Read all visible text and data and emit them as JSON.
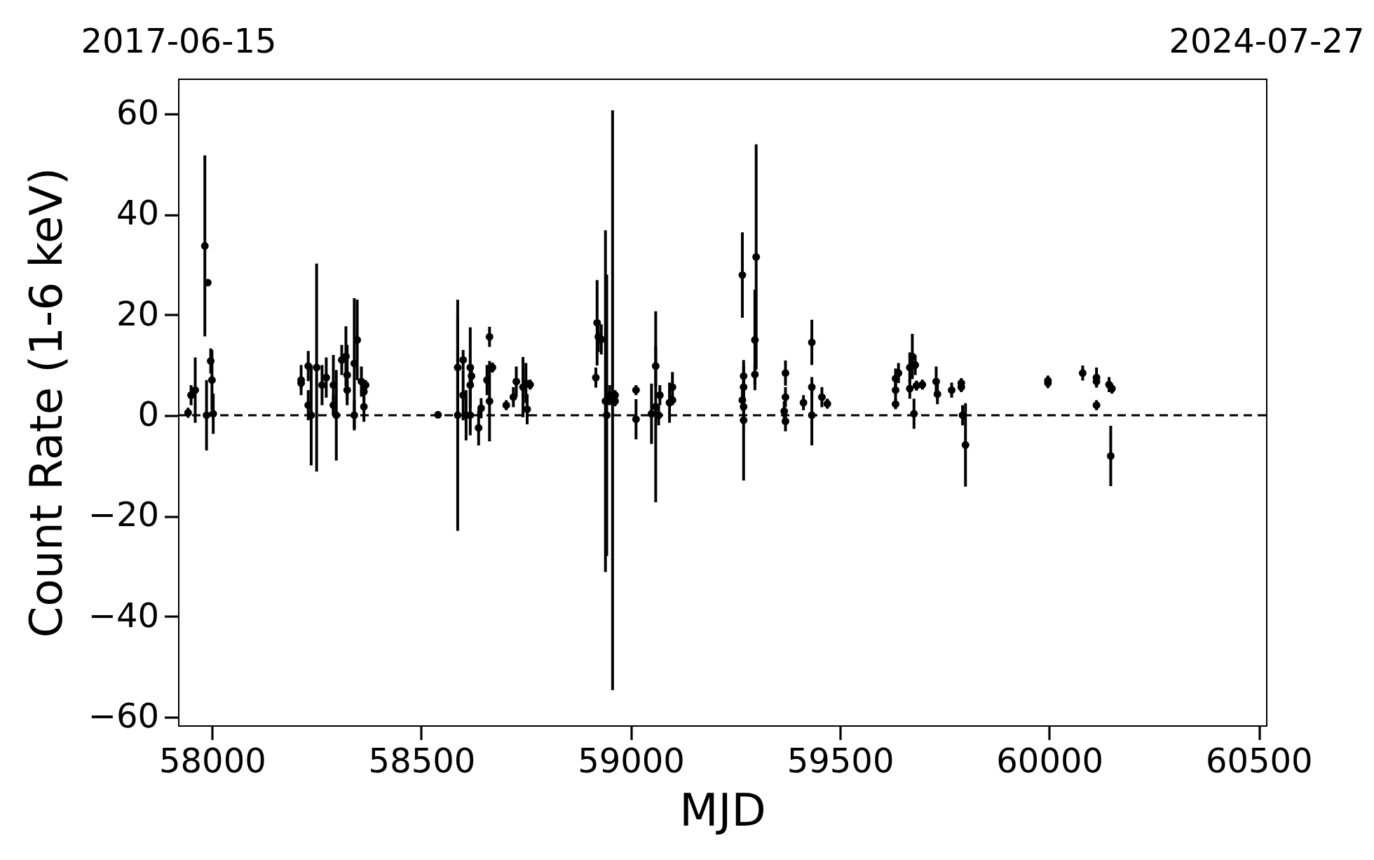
{
  "chart_data": {
    "type": "scatter",
    "xlabel": "MJD",
    "ylabel": "Count Rate (1-6 keV)",
    "xlim": [
      57919,
      60518
    ],
    "xticks": [
      58000,
      58500,
      59000,
      59500,
      60000,
      60500
    ],
    "ylim": [
      -61.7,
      67
    ],
    "yticks": [
      -60,
      -40,
      -20,
      0,
      20,
      40,
      60
    ],
    "x2lim": [
      "2017-06-15",
      "2024-07-27"
    ],
    "x2ticks": [
      "2017-06-15",
      "2024-07-27"
    ],
    "marker": "circle",
    "grid": false,
    "ref_lines": [
      {
        "axis": "y",
        "value": 0,
        "color": "#000000",
        "line_style": "dashed"
      }
    ],
    "series": [
      {
        "color": "#000000",
        "x": [
          57943,
          57950,
          57960,
          57983,
          57990,
          57987,
          57997,
          58000,
          58003,
          58213,
          58213,
          58230,
          58230,
          58237,
          58250,
          58263,
          58273,
          58290,
          58290,
          58297,
          58310,
          58320,
          58323,
          58323,
          58340,
          58347,
          58340,
          58357,
          58363,
          58363,
          58367,
          58540,
          58587,
          58587,
          58600,
          58600,
          58607,
          58617,
          58620,
          58617,
          58617,
          58637,
          58643,
          58657,
          58663,
          58670,
          58663,
          58703,
          58720,
          58727,
          58743,
          58750,
          58753,
          58760,
          58917,
          58920,
          58923,
          58930,
          58940,
          58943,
          58950,
          58957,
          58963,
          58963,
          59013,
          59013,
          59050,
          59060,
          59060,
          59070,
          59067,
          59093,
          59100,
          59100,
          59267,
          59270,
          59270,
          59267,
          59270,
          59270,
          59300,
          59297,
          59297,
          59370,
          59370,
          59367,
          59370,
          59413,
          59433,
          59433,
          59433,
          59457,
          59470,
          59633,
          59633,
          59633,
          59640,
          59667,
          59673,
          59680,
          59677,
          59667,
          59683,
          59697,
          59730,
          59733,
          59767,
          59790,
          59790,
          59793,
          59800,
          59997,
          59997,
          60080,
          60113,
          60113,
          60113,
          60143,
          60150,
          60147
        ],
        "values": [
          0.5,
          4,
          5,
          33.7,
          26.4,
          0,
          10.8,
          7,
          0.3,
          7,
          6.4,
          9.8,
          2,
          0,
          9.5,
          6,
          7.5,
          6,
          2,
          0,
          11,
          11.7,
          8,
          5,
          10.3,
          15,
          0,
          6.7,
          4.7,
          1.7,
          6,
          0.1,
          9.5,
          0,
          11,
          4,
          0,
          9.5,
          7.8,
          6,
          0,
          -2.5,
          1.4,
          7,
          15.6,
          9.5,
          2.8,
          2,
          3.6,
          6.7,
          5.6,
          6.4,
          1.2,
          6.1,
          7.5,
          18.4,
          15.6,
          15.1,
          2.8,
          0,
          4,
          3,
          4,
          2.8,
          5,
          -0.8,
          0.3,
          1.7,
          9.8,
          4,
          0,
          2.5,
          5.6,
          3,
          27.9,
          7.8,
          5.6,
          3,
          1.7,
          -1,
          31.5,
          15,
          8.1,
          8.4,
          3.6,
          0.8,
          -1.2,
          2.5,
          14.5,
          5.6,
          0,
          3.6,
          2.3,
          2.2,
          5,
          7.3,
          8.4,
          9.5,
          11.7,
          10,
          0.3,
          5.3,
          5.9,
          6.1,
          6.7,
          4.2,
          5,
          6.4,
          5.6,
          0,
          -5.9,
          6.9,
          6.4,
          8.4,
          7.5,
          6.7,
          2,
          6.1,
          5.3,
          -8.1
        ],
        "errors": [
          1,
          2,
          6.5,
          18,
          0.5,
          7,
          2.5,
          6,
          4,
          3,
          1,
          3,
          3,
          10,
          20.7,
          4,
          4,
          6,
          2,
          9,
          3,
          6,
          6,
          2,
          13,
          8,
          3,
          3,
          2,
          3,
          1,
          0.5,
          10,
          23,
          2,
          5,
          5,
          8,
          2,
          2,
          4,
          3.5,
          2,
          3,
          2,
          1,
          8,
          1,
          2,
          3,
          6,
          4,
          3,
          1,
          2,
          8.5,
          3,
          3,
          34,
          28,
          2,
          57.7,
          1,
          1,
          1,
          4,
          6,
          19,
          4,
          2,
          2,
          4,
          3,
          1,
          8.5,
          2,
          2,
          2,
          2,
          12,
          22.4,
          10,
          2,
          2.5,
          2,
          2,
          2,
          1.5,
          4.5,
          2,
          6,
          2,
          1,
          1,
          2,
          2,
          2,
          3,
          4.5,
          2,
          3,
          2,
          1,
          1,
          3,
          2,
          1.5,
          1,
          1,
          2,
          8.3,
          1,
          1,
          1.5,
          2,
          1,
          1,
          1.5,
          1,
          6
        ]
      }
    ]
  }
}
